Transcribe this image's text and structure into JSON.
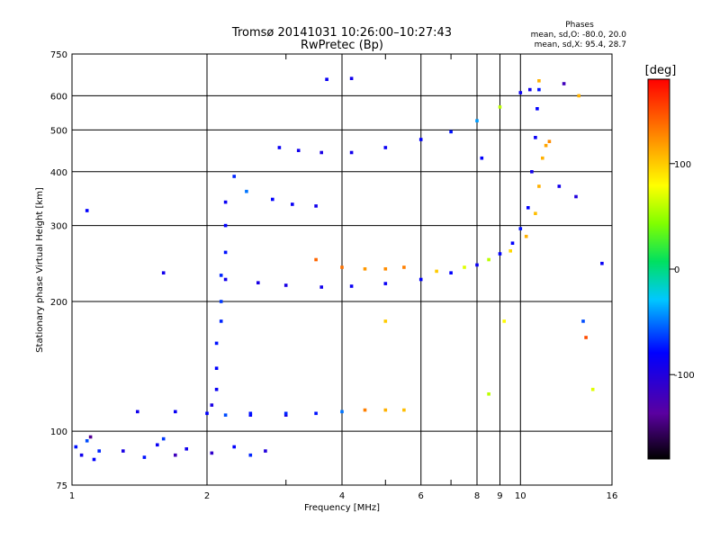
{
  "chart_data": {
    "type": "scatter",
    "title": "Tromsø 20141031 10:26:00–10:27:43",
    "subtitle": "RwPretec (Bp)",
    "xlabel": "Frequency [MHz]",
    "ylabel": "Stationary phase Virtual Height [km]",
    "x_scale": "log",
    "y_scale": "log",
    "xlim": [
      1,
      16
    ],
    "ylim": [
      75,
      750
    ],
    "grid": true,
    "x_ticks": [
      1,
      2,
      4,
      6,
      8,
      9,
      10,
      16
    ],
    "x_tick_labels": [
      "1",
      "2",
      "4",
      "6",
      "8",
      "9",
      "10",
      "16"
    ],
    "x_minor_ticks": [
      3,
      5,
      7
    ],
    "y_ticks": [
      75,
      100,
      200,
      300,
      400,
      500,
      600,
      750
    ],
    "y_tick_labels": [
      "75",
      "100",
      "200",
      "300",
      "400",
      "500",
      "600",
      "750"
    ],
    "stats": {
      "header": "Phases",
      "line_o": "mean, sd,O: -80.0, 20.0",
      "line_x": "mean, sd,X:  95.4, 28.7"
    },
    "colorbar": {
      "label": "[deg]",
      "range": [
        -180,
        180
      ],
      "ticks": [
        100,
        0,
        -100
      ],
      "tick_labels": [
        "100",
        "0",
        "-100"
      ],
      "colormap": "rainbow"
    },
    "series": [
      {
        "points": [
          [
            1.02,
            92,
            -75
          ],
          [
            1.05,
            88,
            -90
          ],
          [
            1.08,
            95,
            -60
          ],
          [
            1.12,
            86,
            -80
          ],
          [
            1.1,
            97,
            -140
          ],
          [
            1.15,
            90,
            -70
          ],
          [
            1.3,
            90,
            -95
          ],
          [
            1.45,
            87,
            -75
          ],
          [
            1.55,
            93,
            -85
          ],
          [
            1.6,
            96,
            -65
          ],
          [
            1.7,
            88,
            -120
          ],
          [
            1.8,
            91,
            -90
          ],
          [
            2.05,
            89,
            -110
          ],
          [
            2.3,
            92,
            -80
          ],
          [
            2.5,
            88,
            -70
          ],
          [
            2.7,
            90,
            -100
          ],
          [
            1.08,
            325,
            -80
          ],
          [
            1.6,
            233,
            -90
          ],
          [
            2.2,
            109,
            -60
          ],
          [
            2.5,
            109,
            -80
          ],
          [
            3.0,
            109,
            -95
          ]
        ]
      },
      {
        "points": [
          [
            2.05,
            115,
            -95
          ],
          [
            2.1,
            125,
            -85
          ],
          [
            2.1,
            140,
            -80
          ],
          [
            2.1,
            160,
            -75
          ],
          [
            2.15,
            180,
            -70
          ],
          [
            2.15,
            200,
            -65
          ],
          [
            2.15,
            230,
            -70
          ],
          [
            2.2,
            260,
            -75
          ],
          [
            2.2,
            300,
            -80
          ],
          [
            2.2,
            340,
            -85
          ],
          [
            2.3,
            390,
            -70
          ],
          [
            2.45,
            360,
            -50
          ],
          [
            2.8,
            345,
            -80
          ],
          [
            3.1,
            336,
            -85
          ],
          [
            3.5,
            333,
            -90
          ]
        ]
      },
      {
        "points": [
          [
            1.4,
            111,
            -90
          ],
          [
            1.7,
            111,
            -85
          ],
          [
            2.0,
            110,
            -80
          ],
          [
            2.5,
            110,
            -75
          ],
          [
            3.0,
            110,
            -70
          ],
          [
            3.5,
            110,
            -75
          ],
          [
            4.0,
            111,
            -50
          ],
          [
            4.5,
            112,
            130
          ],
          [
            5.0,
            112,
            110
          ],
          [
            5.5,
            112,
            105
          ]
        ]
      },
      {
        "points": [
          [
            2.2,
            225,
            -90
          ],
          [
            2.6,
            221,
            -95
          ],
          [
            3.0,
            218,
            -95
          ],
          [
            3.6,
            216,
            -90
          ],
          [
            4.2,
            217,
            -85
          ],
          [
            5.0,
            220,
            -85
          ],
          [
            6.0,
            225,
            -80
          ],
          [
            7.0,
            233,
            -80
          ],
          [
            8.0,
            243,
            -85
          ],
          [
            9.0,
            258,
            -80
          ],
          [
            9.6,
            273,
            -80
          ],
          [
            10.0,
            295,
            -75
          ],
          [
            10.4,
            330,
            -80
          ],
          [
            10.6,
            400,
            -90
          ],
          [
            10.8,
            480,
            -85
          ],
          [
            10.9,
            560,
            -80
          ],
          [
            11.0,
            620,
            -75
          ]
        ]
      },
      {
        "points": [
          [
            3.5,
            250,
            140
          ],
          [
            4.0,
            240,
            135
          ],
          [
            4.5,
            238,
            120
          ],
          [
            5.0,
            238,
            125
          ],
          [
            5.5,
            240,
            130
          ],
          [
            6.5,
            235,
            100
          ],
          [
            7.5,
            240,
            70
          ],
          [
            8.5,
            250,
            60
          ],
          [
            9.5,
            262,
            95
          ],
          [
            10.3,
            283,
            110
          ],
          [
            10.8,
            320,
            105
          ],
          [
            11.0,
            370,
            110
          ],
          [
            11.2,
            430,
            110
          ],
          [
            11.4,
            460,
            115
          ],
          [
            11.6,
            470,
            125
          ]
        ]
      },
      {
        "points": [
          [
            2.9,
            455,
            -85
          ],
          [
            3.2,
            448,
            -90
          ],
          [
            3.6,
            443,
            -95
          ],
          [
            4.2,
            443,
            -90
          ],
          [
            5.0,
            455,
            -85
          ],
          [
            6.0,
            475,
            -80
          ],
          [
            7.0,
            495,
            -75
          ],
          [
            8.0,
            525,
            -40
          ],
          [
            9.0,
            565,
            60
          ],
          [
            10.0,
            610,
            -85
          ],
          [
            10.5,
            620,
            -90
          ],
          [
            11.0,
            650,
            110
          ],
          [
            12.5,
            640,
            -120
          ],
          [
            13.5,
            600,
            110
          ],
          [
            3.7,
            655,
            -85
          ],
          [
            4.2,
            658,
            -90
          ]
        ]
      },
      {
        "points": [
          [
            12.2,
            370,
            -90
          ],
          [
            13.3,
            350,
            -100
          ],
          [
            15.2,
            245,
            -85
          ],
          [
            13.8,
            180,
            -60
          ],
          [
            14.0,
            165,
            150
          ],
          [
            8.2,
            430,
            -80
          ],
          [
            9.2,
            180,
            80
          ],
          [
            8.5,
            122,
            60
          ],
          [
            14.5,
            125,
            70
          ],
          [
            5.0,
            180,
            100
          ]
        ]
      }
    ]
  }
}
